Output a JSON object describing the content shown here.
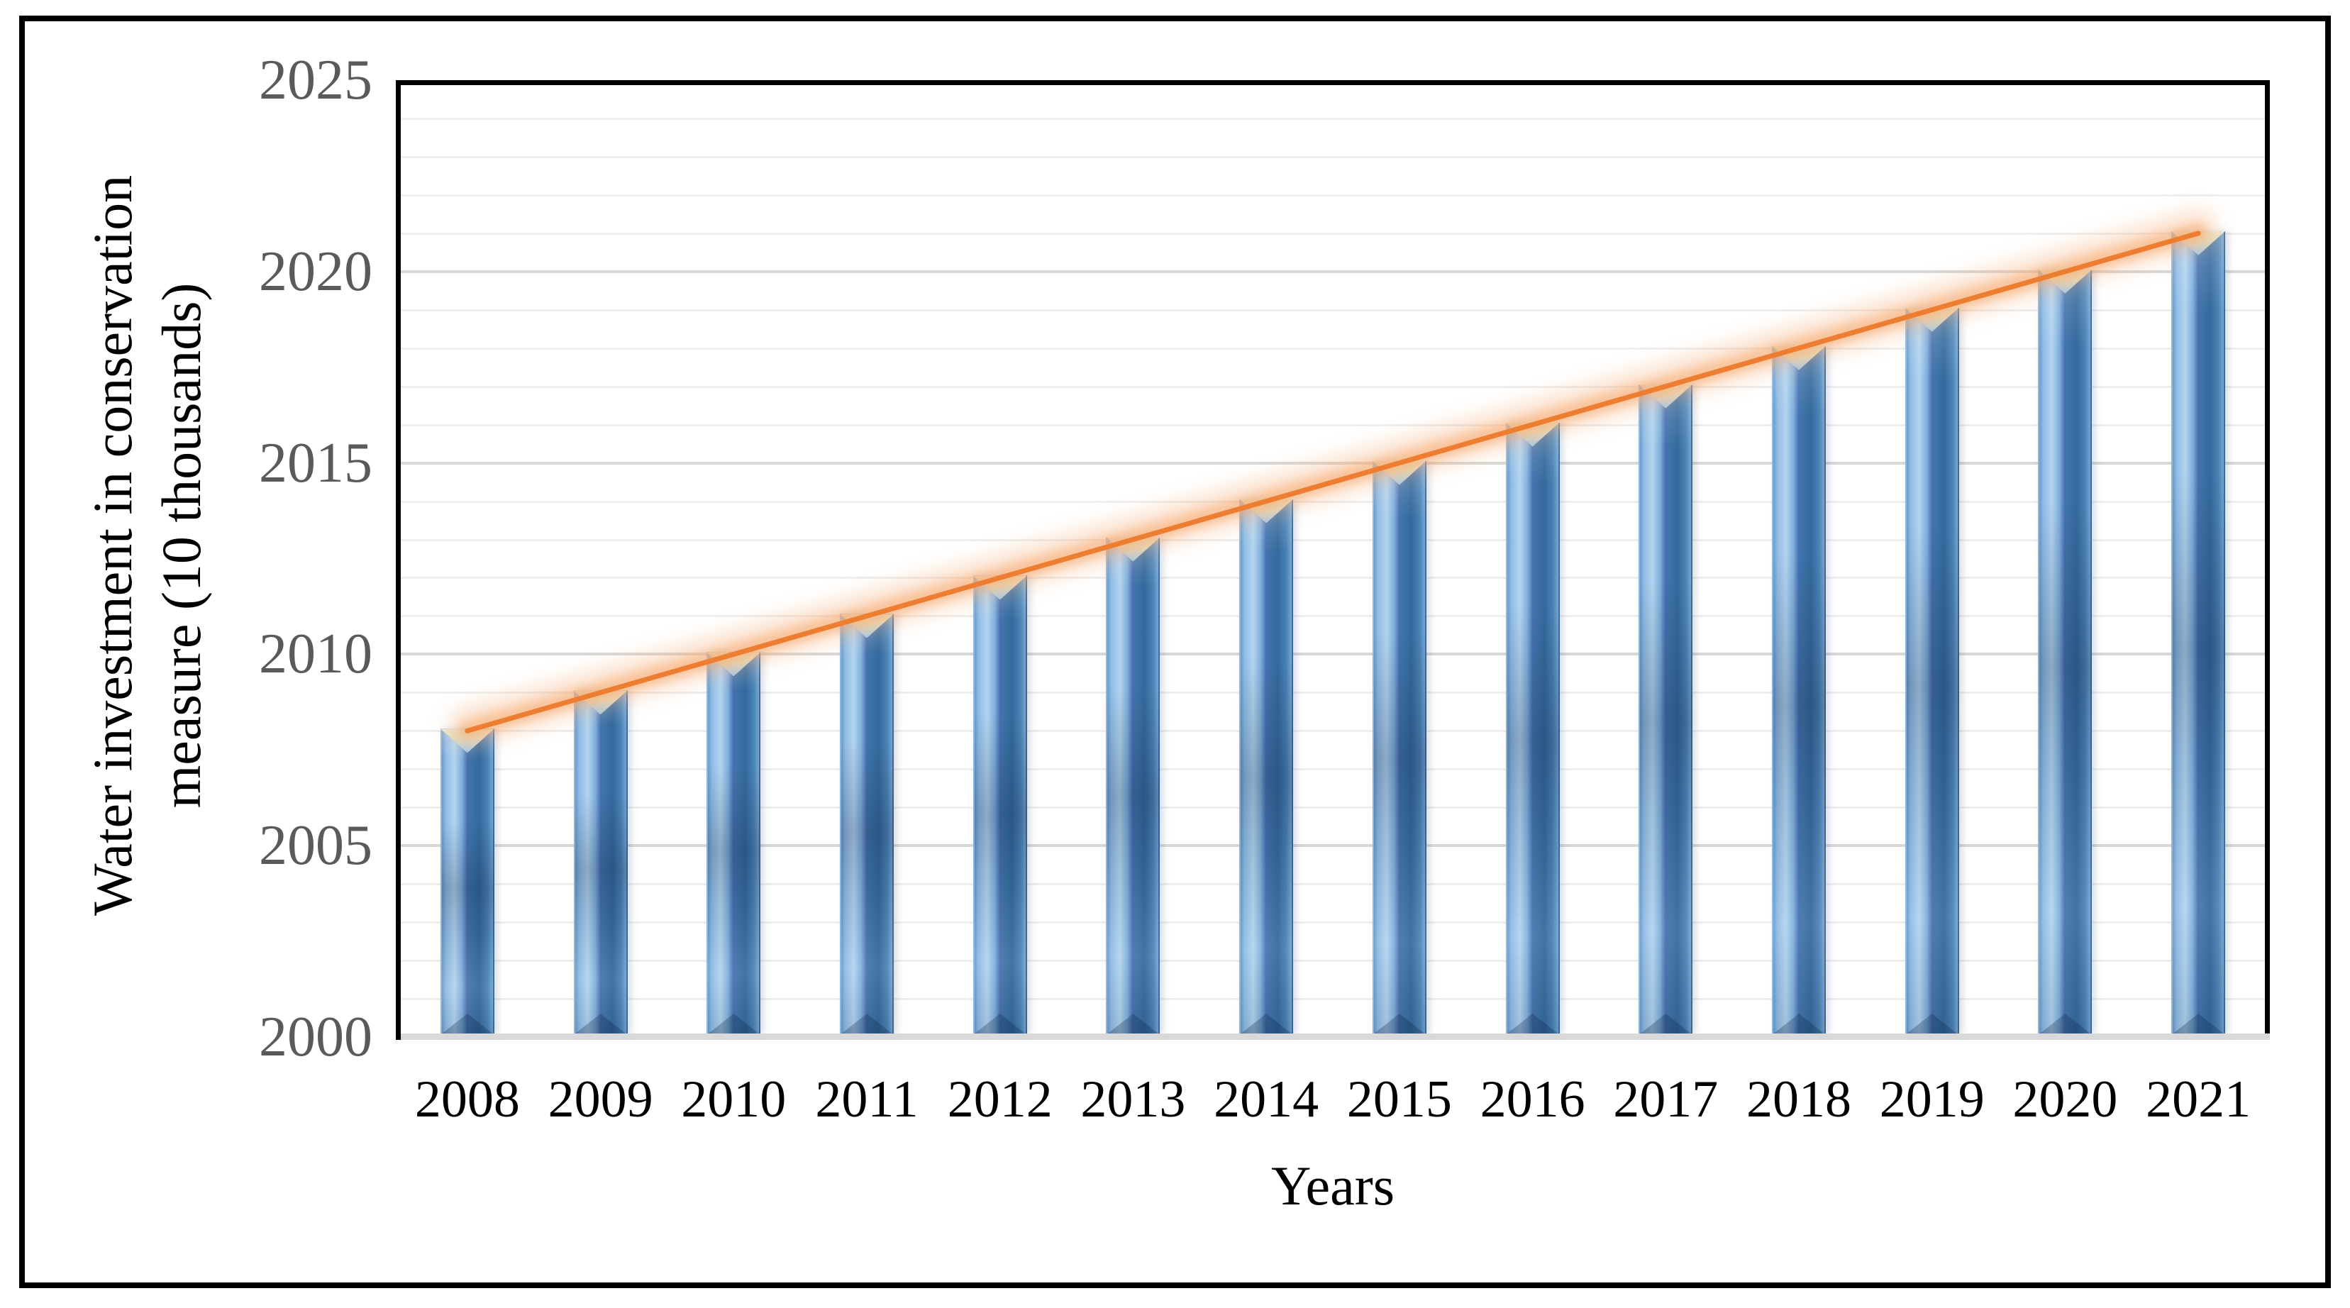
{
  "figure": {
    "kind": "column chart with linear trendline, black outer frame",
    "background": "#FFFFFF"
  },
  "chart_data": {
    "type": "bar",
    "title": "",
    "categories": [
      "2008",
      "2009",
      "2010",
      "2011",
      "2012",
      "2013",
      "2014",
      "2015",
      "2016",
      "2017",
      "2018",
      "2019",
      "2020",
      "2021"
    ],
    "values": [
      2008,
      2009,
      2010,
      2011,
      2012,
      2013,
      2014,
      2015,
      2016,
      2017,
      2018,
      2019,
      2020,
      2021
    ],
    "series": [
      {
        "name": "Water investment in conservation measure",
        "values": [
          2008,
          2009,
          2010,
          2011,
          2012,
          2013,
          2014,
          2015,
          2016,
          2017,
          2018,
          2019,
          2020,
          2021
        ]
      }
    ],
    "trendline": {
      "type": "linear",
      "start_category": "2008",
      "end_category": "2021",
      "start_value": 2008,
      "end_value": 2021,
      "color": "#ED7D31"
    },
    "xlabel": "Years",
    "ylabel": "Water investment in conservation measure (10 thousands)",
    "ylabel_lines": [
      "Water investment in conservation",
      "measure (10 thousands)"
    ],
    "ylim": [
      2000,
      2025
    ],
    "yticks": [
      2025,
      2020,
      2015,
      2010,
      2005,
      2000
    ],
    "ytick_labels": [
      "2025",
      "2020",
      "2015",
      "2010",
      "2005",
      "2000"
    ],
    "grid": {
      "horizontal_minor_step": 1,
      "horizontal_major_step": 5,
      "vertical": false
    },
    "legend": "none",
    "colors": {
      "bar_fill_main": "#4A86B8",
      "bar_fill_light": "#B3D4EF",
      "bar_fill_dark": "#35689C",
      "bar_cap_cream": "#E7E5CC",
      "trend_line": "#ED7D31",
      "trend_glow": "#F6A96E",
      "grid_minor": "#EEEEEE",
      "grid_major": "#D8D8D8",
      "axis_line": "#000000",
      "baseline": "#D9D9D9",
      "ytick_text": "#5A5A5A",
      "xtick_text": "#000000",
      "frame": "#000000"
    }
  }
}
